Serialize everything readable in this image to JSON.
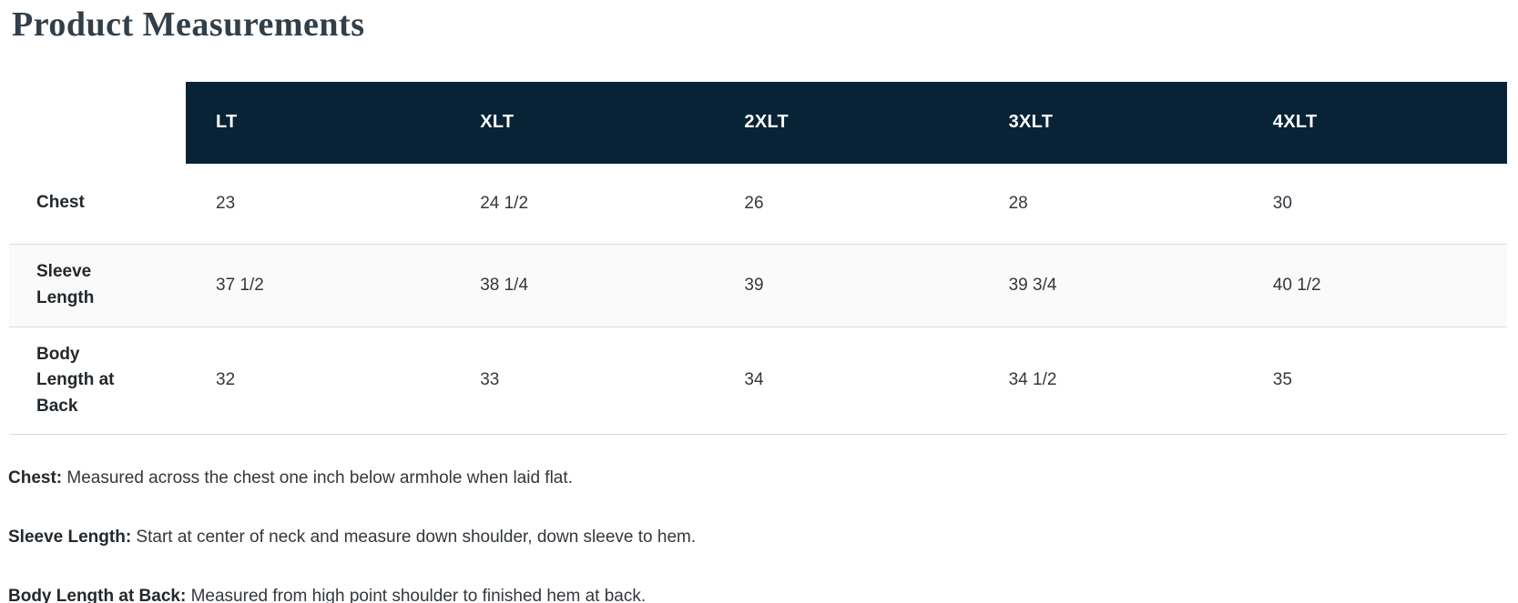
{
  "page": {
    "title": "Product Measurements"
  },
  "table": {
    "columns": [
      "LT",
      "XLT",
      "2XLT",
      "3XLT",
      "4XLT"
    ],
    "rows": [
      {
        "label": "Chest",
        "values": [
          "23",
          "24 1/2",
          "26",
          "28",
          "30"
        ]
      },
      {
        "label": "Sleeve Length",
        "values": [
          "37 1/2",
          "38 1/4",
          "39",
          "39 3/4",
          "40 1/2"
        ]
      },
      {
        "label": "Body Length at Back",
        "values": [
          "32",
          "33",
          "34",
          "34 1/2",
          "35"
        ]
      }
    ]
  },
  "notes": [
    {
      "term": "Chest:",
      "description": " Measured across the chest one inch below armhole when laid flat."
    },
    {
      "term": "Sleeve Length:",
      "description": " Start at center of neck and measure down shoulder, down sleeve to hem."
    },
    {
      "term": "Body Length at Back:",
      "description": " Measured from high point shoulder to finished hem at back."
    }
  ],
  "colors": {
    "header_bg": "#082336",
    "header_text": "#ffffff",
    "stripe_bg": "#fafafa",
    "border": "#dcdcdc",
    "title_text": "#323e48",
    "body_text": "#33383d"
  }
}
